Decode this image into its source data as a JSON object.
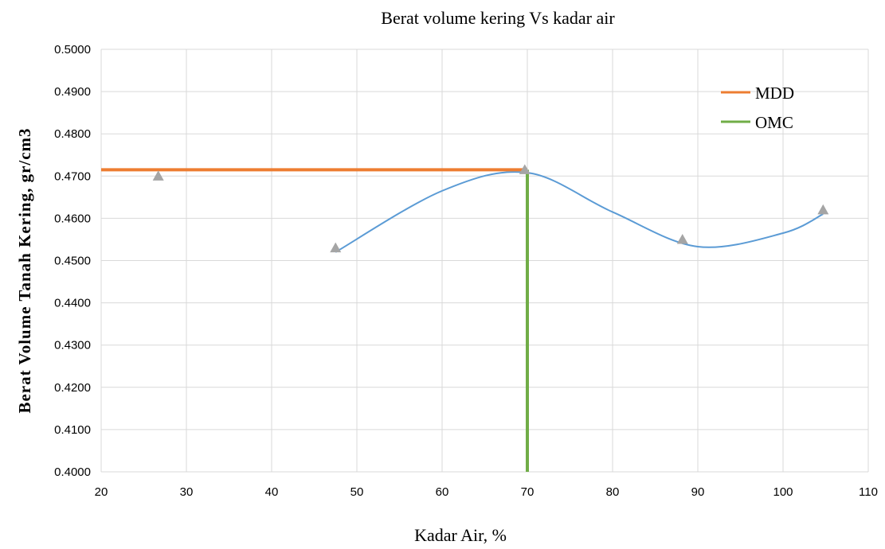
{
  "chart_data": {
    "type": "scatter",
    "title": "Berat volume kering Vs kadar air",
    "xlabel": "Kadar Air, %",
    "ylabel": "Berat Volume Tanah Kering, gr/cm3",
    "xlim": [
      20,
      110
    ],
    "ylim": [
      0.4,
      0.5
    ],
    "x_ticks": [
      "20",
      "30",
      "40",
      "50",
      "60",
      "70",
      "80",
      "90",
      "100",
      "110"
    ],
    "y_ticks": [
      "0.4000",
      "0.4100",
      "0.4200",
      "0.4300",
      "0.4400",
      "0.4500",
      "0.4600",
      "0.4700",
      "0.4800",
      "0.4900",
      "0.5000"
    ],
    "grid": true,
    "legend_position": "top-right",
    "points": {
      "marker": "triangle",
      "color": "#a5a5a5",
      "x": [
        26.7,
        47.5,
        69.7,
        88.2,
        104.7
      ],
      "y": [
        0.47,
        0.453,
        0.4715,
        0.455,
        0.462
      ]
    },
    "curve": {
      "color": "#5b9bd5",
      "x": [
        47.5,
        60,
        70,
        80,
        90,
        100,
        104.7
      ],
      "y": [
        0.452,
        0.4665,
        0.4708,
        0.4615,
        0.4533,
        0.4565,
        0.461
      ]
    },
    "series": [
      {
        "name": "MDD",
        "color": "#ed7d31",
        "x": [
          20,
          70
        ],
        "y": [
          0.4715,
          0.4715
        ]
      },
      {
        "name": "OMC",
        "color": "#70ad47",
        "x": [
          70,
          70
        ],
        "y": [
          0.4,
          0.4715
        ]
      }
    ]
  }
}
